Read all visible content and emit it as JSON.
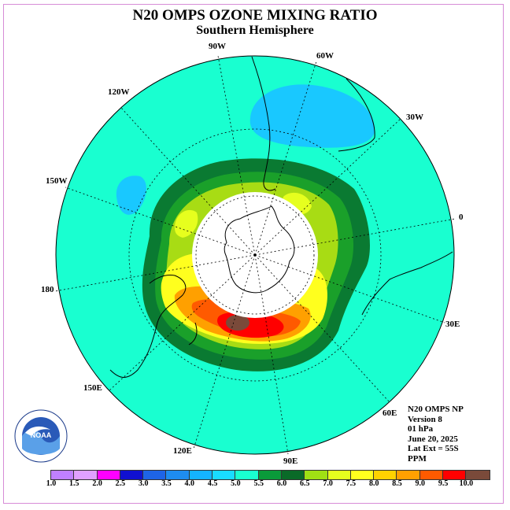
{
  "header": {
    "title": "N20 OMPS OZONE MIXING RATIO",
    "subtitle": "Southern Hemisphere"
  },
  "map": {
    "projection": "polar stereographic (south pole)",
    "longitude_labels": [
      "90W",
      "60W",
      "30W",
      "0",
      "30E",
      "60E",
      "90E",
      "120E",
      "150E",
      "180",
      "150W",
      "120W"
    ],
    "colors": {
      "background_field": "#19ffd0",
      "low_blue": "#19c8ff",
      "dark_green": "#0a7a32",
      "green": "#1aa02a",
      "yellow_green": "#a8dc14",
      "yellow": "#ffff1e",
      "orange": "#ff8c00",
      "red": "#ff0000",
      "brown": "#7a4a3a",
      "no_data": "#ffffff"
    }
  },
  "info": {
    "line1": "N20 OMPS NP",
    "line2": "Version 8",
    "line3": "01 hPa",
    "line4": "June 20, 2025",
    "line5": "Lat Ext = 55S",
    "line6": "PPM"
  },
  "colorbar": {
    "labels": [
      "1.0",
      "1.5",
      "2.0",
      "2.5",
      "3.0",
      "3.5",
      "4.0",
      "4.5",
      "5.0",
      "5.5",
      "6.0",
      "6.5",
      "7.0",
      "7.5",
      "8.0",
      "8.5",
      "9.0",
      "9.5",
      "10.0"
    ],
    "colors": [
      "#c080ff",
      "#e0a0ff",
      "#ff00ff",
      "#1010d0",
      "#1e64e6",
      "#1e8cf0",
      "#14b4ff",
      "#19dcff",
      "#19ffd0",
      "#0a9a3a",
      "#0a6a28",
      "#a0e014",
      "#e6ff1e",
      "#ffff1e",
      "#ffd200",
      "#ffa000",
      "#ff5a00",
      "#ff0000",
      "#7a4a3a"
    ]
  },
  "logo": {
    "name": "NOAA",
    "text": "NOAA"
  }
}
